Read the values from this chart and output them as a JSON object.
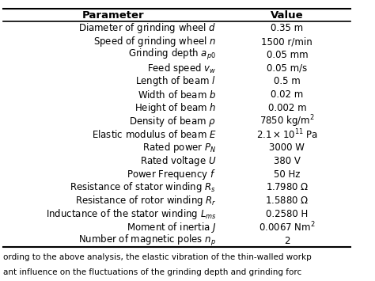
{
  "rows": [
    [
      "Diameter of grinding wheel $d$",
      "0.35 m"
    ],
    [
      "Speed of grinding wheel $n$",
      "1500 r/min"
    ],
    [
      "Grinding depth $a_{p0}$",
      "0.05 mm"
    ],
    [
      "Feed speed $v_w$",
      "0.05 m/s"
    ],
    [
      "Length of beam $l$",
      "0.5 m"
    ],
    [
      "Width of beam $b$",
      "0.02 m"
    ],
    [
      "Height of beam $h$",
      "0.002 m"
    ],
    [
      "Density of beam $\\rho$",
      "7850 kg/m$^2$"
    ],
    [
      "Elastic modulus of beam $E$",
      "$2.1 \\times 10^{11}$ Pa"
    ],
    [
      "Rated power $P_N$",
      "3000 W"
    ],
    [
      "Rated voltage $U$",
      "380 V"
    ],
    [
      "Power Frequency $f$",
      "50 Hz"
    ],
    [
      "Resistance of stator winding $R_s$",
      "1.7980 $\\Omega$"
    ],
    [
      "Resistance of rotor winding $R_r$",
      "1.5880 $\\Omega$"
    ],
    [
      "Inductance of the stator winding $L_{ms}$",
      "0.2580 H"
    ],
    [
      "Moment of inertia $J$",
      "0.0067 Nm$^2$"
    ],
    [
      "Number of magnetic poles $n_p$",
      "2"
    ]
  ],
  "col_header": [
    "Parameter",
    "Value"
  ],
  "footer_text": "ording to the above analysis, the elastic vibration of the thin-walled workp\nant influence on the fluctuations of the grinding depth and grinding forc",
  "bg_color": "#ffffff",
  "header_bg": "#ffffff",
  "line_color": "#000000",
  "text_color": "#000000",
  "font_size": 8.5,
  "header_font_size": 9.5
}
